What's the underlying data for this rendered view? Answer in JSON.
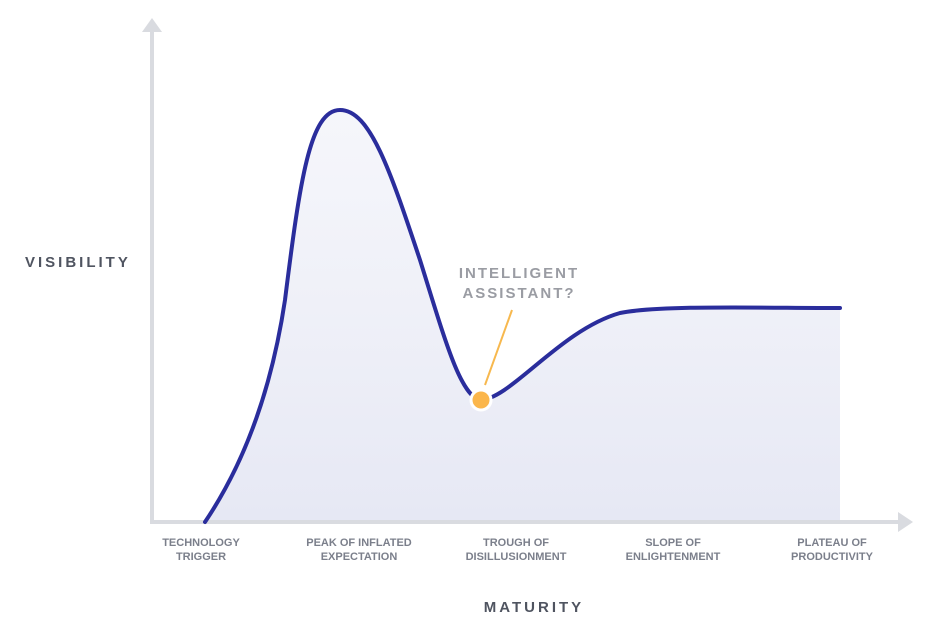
{
  "y_axis_label": "VISIBILITY",
  "x_axis_label": "MATURITY",
  "annotation": {
    "lines": [
      "INTELLIGENT",
      "ASSISTANT?"
    ]
  },
  "phases": [
    {
      "lines": [
        "TECHNOLOGY",
        "TRIGGER"
      ]
    },
    {
      "lines": [
        "PEAK OF INFLATED",
        "EXPECTATION"
      ]
    },
    {
      "lines": [
        "TROUGH OF",
        "DISILLUSIONMENT"
      ]
    },
    {
      "lines": [
        "SLOPE OF",
        "ENLIGHTENMENT"
      ]
    },
    {
      "lines": [
        "PLATEAU OF",
        "PRODUCTIVITY"
      ]
    }
  ]
}
